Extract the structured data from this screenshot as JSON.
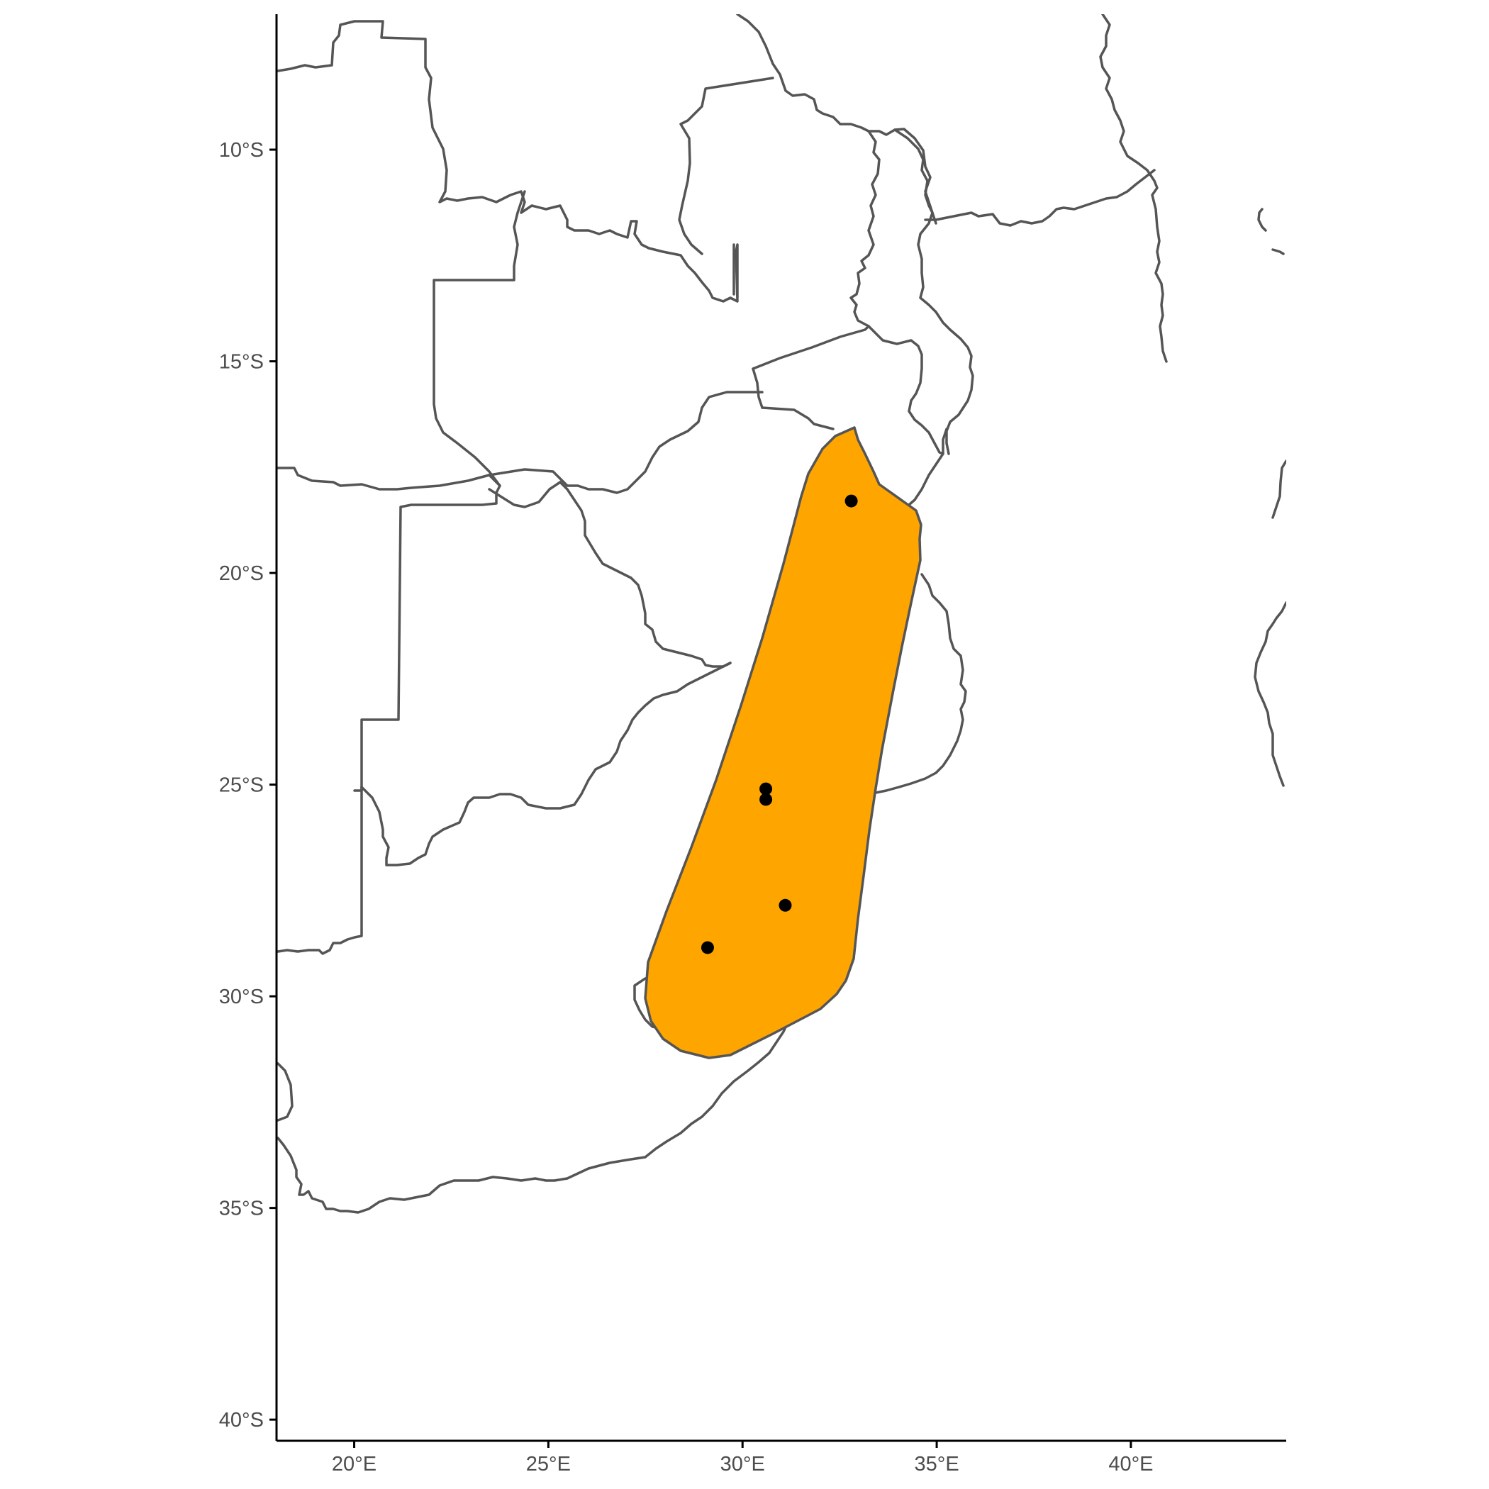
{
  "map": {
    "colors": {
      "background": "#ffffff",
      "border": "#555555",
      "range_fill": "#ffa500",
      "point": "#000000",
      "axis": "#000000",
      "tick_text": "#4d4d4d"
    },
    "x_axis": {
      "ticks": [
        {
          "value": 20,
          "label": "20°E"
        },
        {
          "value": 25,
          "label": "25°E"
        },
        {
          "value": 30,
          "label": "30°E"
        },
        {
          "value": 35,
          "label": "35°E"
        },
        {
          "value": 40,
          "label": "40°E"
        }
      ]
    },
    "y_axis": {
      "ticks": [
        {
          "value": -10,
          "label": "10°S"
        },
        {
          "value": -15,
          "label": "15°S"
        },
        {
          "value": -20,
          "label": "20°S"
        },
        {
          "value": -25,
          "label": "25°S"
        },
        {
          "value": -30,
          "label": "30°S"
        },
        {
          "value": -35,
          "label": "35°S"
        },
        {
          "value": -40,
          "label": "40°S"
        }
      ]
    },
    "lon_range": [
      18,
      44
    ],
    "lat_range": [
      -40.5,
      -6.8
    ],
    "occurrence_points": [
      {
        "lon": 32.8,
        "lat": -18.3
      },
      {
        "lon": 30.6,
        "lat": -25.1
      },
      {
        "lon": 30.6,
        "lat": -25.35
      },
      {
        "lon": 31.1,
        "lat": -27.85
      },
      {
        "lon": 29.1,
        "lat": -28.85
      }
    ]
  }
}
